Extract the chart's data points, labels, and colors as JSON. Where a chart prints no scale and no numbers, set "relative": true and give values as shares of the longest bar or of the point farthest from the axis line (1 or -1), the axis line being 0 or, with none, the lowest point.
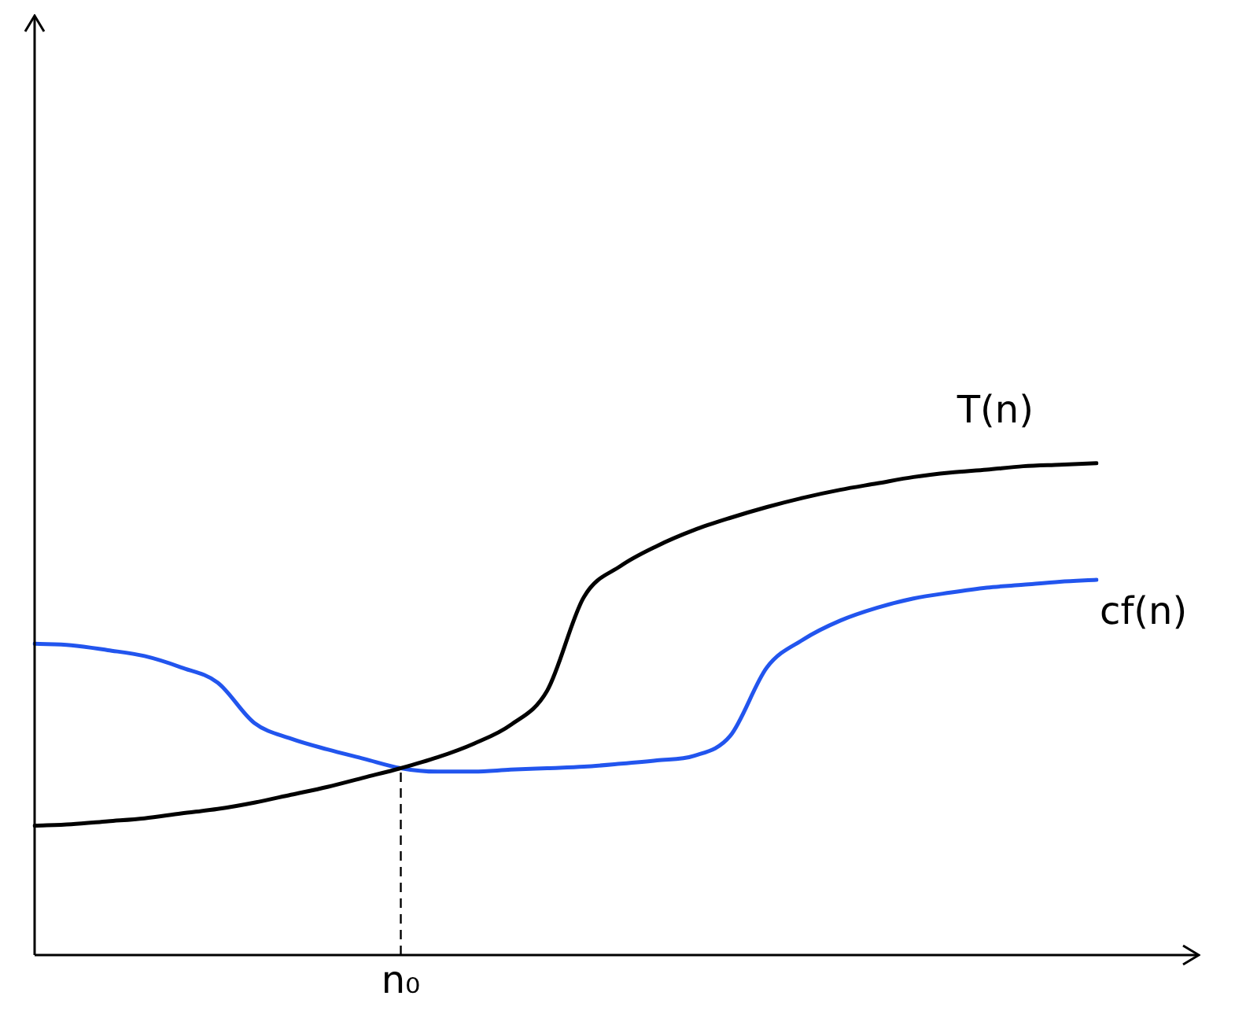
{
  "chart_data": {
    "type": "line",
    "relative": true,
    "categories": [
      null,
      null,
      null,
      null,
      null,
      null,
      null,
      null,
      null,
      null,
      null,
      null,
      null,
      null,
      null,
      null,
      null,
      null,
      null,
      null,
      null,
      null,
      null,
      null,
      null,
      null,
      null,
      null,
      null,
      null
    ],
    "series": [
      {
        "name": "T(n)",
        "color": "#000000",
        "values": [
          0.263,
          0.266,
          0.272,
          0.278,
          0.288,
          0.297,
          0.31,
          0.326,
          0.342,
          0.361,
          0.38,
          0.402,
          0.43,
          0.468,
          0.538,
          0.728,
          0.791,
          0.832,
          0.864,
          0.889,
          0.911,
          0.93,
          0.946,
          0.959,
          0.972,
          0.981,
          0.987,
          0.994,
          0.997,
          1
        ]
      },
      {
        "name": "cf(n)",
        "color": "#2255ee",
        "values": [
          0.633,
          0.63,
          0.62,
          0.608,
          0.585,
          0.554,
          0.472,
          0.44,
          0.418,
          0.399,
          0.38,
          0.373,
          0.373,
          0.377,
          0.38,
          0.383,
          0.389,
          0.396,
          0.405,
          0.446,
          0.585,
          0.642,
          0.68,
          0.706,
          0.725,
          0.737,
          0.747,
          0.753,
          0.759,
          0.763
        ]
      }
    ],
    "annotations": [
      "n₀"
    ],
    "marker": "none",
    "line_style": "solid",
    "legend": false
  }
}
